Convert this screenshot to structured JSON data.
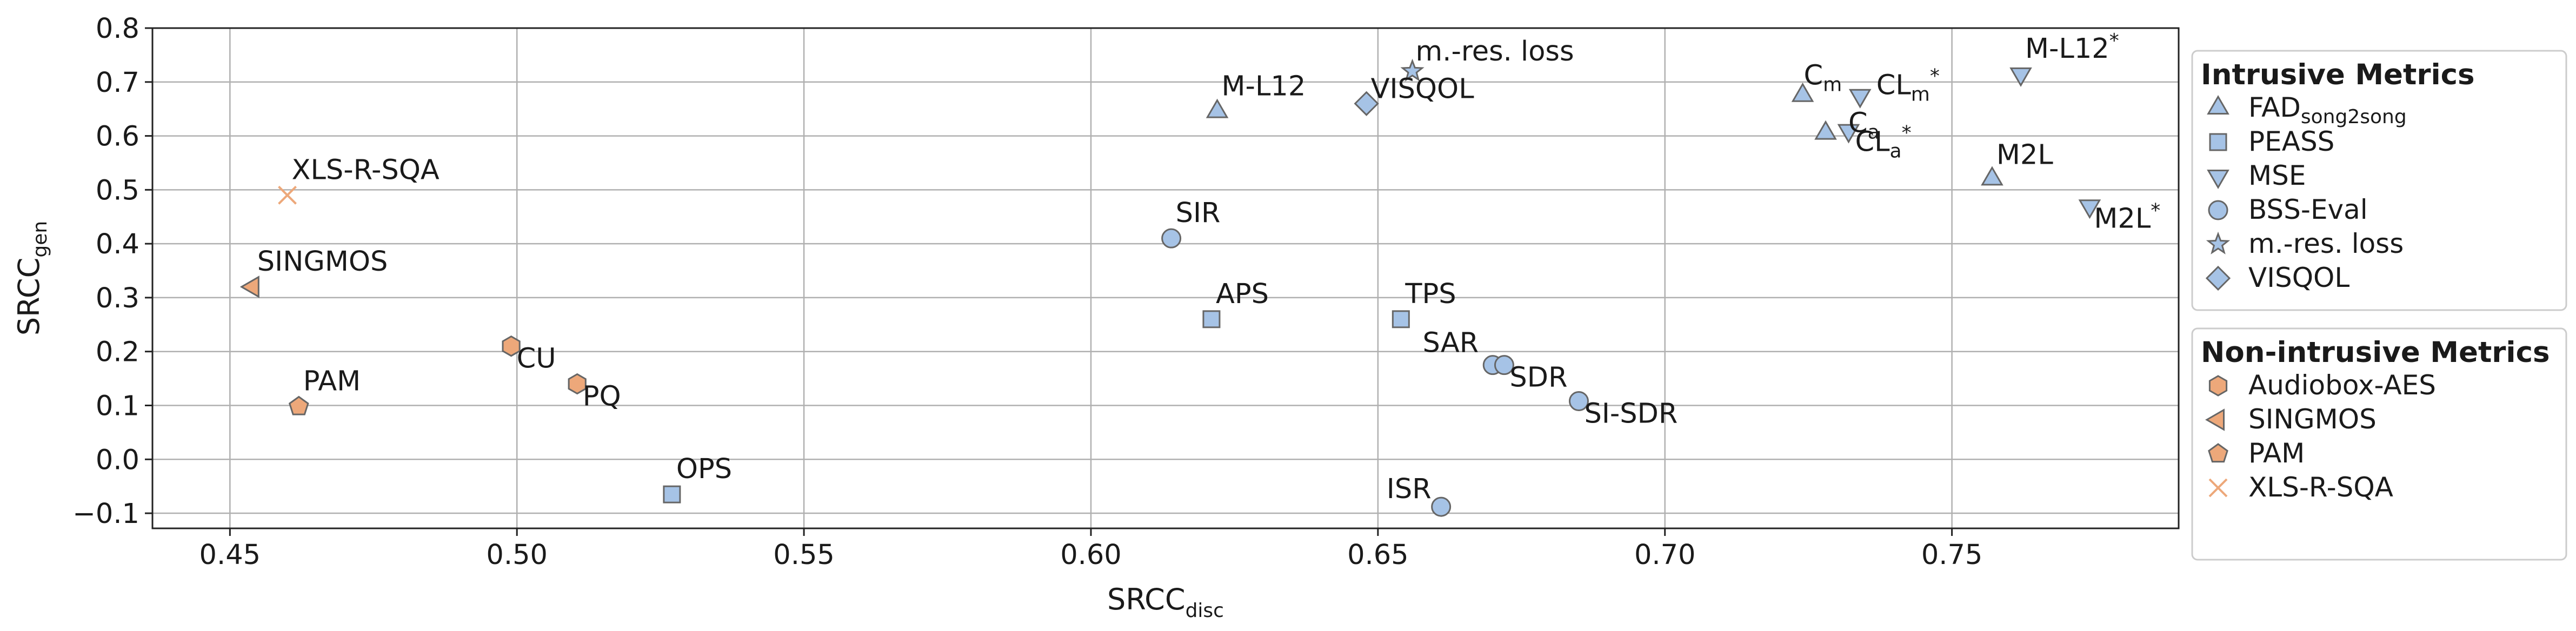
{
  "chart_data": {
    "type": "scatter",
    "xlabel": {
      "base": "SRCC",
      "sub": "disc"
    },
    "ylabel": {
      "base": "SRCC",
      "sub": "gen"
    },
    "xlim": [
      0.4365,
      0.7895
    ],
    "ylim": [
      -0.128,
      0.8
    ],
    "xticks": [
      0.45,
      0.5,
      0.55,
      0.6,
      0.65,
      0.7,
      0.75
    ],
    "xtick_labels": [
      "0.45",
      "0.50",
      "0.55",
      "0.60",
      "0.65",
      "0.70",
      "0.75"
    ],
    "yticks": [
      -0.1,
      0.0,
      0.1,
      0.2,
      0.3,
      0.4,
      0.5,
      0.6,
      0.7,
      0.8
    ],
    "ytick_labels": [
      "−0.1",
      "0.0",
      "0.1",
      "0.2",
      "0.3",
      "0.4",
      "0.5",
      "0.6",
      "0.7",
      "0.8"
    ],
    "grid": true,
    "colors": {
      "intrusive": "#a6c3e6",
      "non_intrusive": "#eda87a"
    },
    "legend": [
      {
        "title": "Intrusive Metrics",
        "placement": "top-right",
        "entries": [
          {
            "marker": "triangle-up",
            "label": "FAD",
            "label_sub": "song2song"
          },
          {
            "marker": "square",
            "label": "PEASS"
          },
          {
            "marker": "triangle-down",
            "label": "MSE"
          },
          {
            "marker": "circle",
            "label": "BSS-Eval"
          },
          {
            "marker": "star",
            "label": "m.-res. loss"
          },
          {
            "marker": "diamond",
            "label": "VISQOL"
          }
        ]
      },
      {
        "title": "Non-intrusive Metrics",
        "placement": "right",
        "entries": [
          {
            "marker": "hexagon",
            "label": "Audiobox-AES"
          },
          {
            "marker": "triangle-left",
            "label": "SINGMOS"
          },
          {
            "marker": "pentagon",
            "label": "PAM"
          },
          {
            "marker": "x",
            "label": "XLS-R-SQA"
          }
        ]
      }
    ],
    "series": [
      {
        "group": "intrusive",
        "marker": "triangle-up",
        "points": [
          {
            "x": 0.622,
            "y": 0.645,
            "label": "M-L12"
          },
          {
            "x": 0.724,
            "y": 0.675,
            "label": "C",
            "label_sub": "m"
          },
          {
            "x": 0.728,
            "y": 0.605,
            "label": "C",
            "label_sub": "a"
          },
          {
            "x": 0.757,
            "y": 0.52,
            "label": "M2L"
          }
        ]
      },
      {
        "group": "intrusive",
        "marker": "square",
        "points": [
          {
            "x": 0.621,
            "y": 0.26,
            "label": "APS"
          },
          {
            "x": 0.654,
            "y": 0.26,
            "label": "TPS"
          },
          {
            "x": 0.527,
            "y": -0.065,
            "label": "OPS"
          }
        ]
      },
      {
        "group": "intrusive",
        "marker": "triangle-down",
        "points": [
          {
            "x": 0.762,
            "y": 0.715,
            "label": "M-L12",
            "label_sup": "*"
          },
          {
            "x": 0.734,
            "y": 0.675,
            "label": "CL",
            "label_sub": "m",
            "label_sup": "*"
          },
          {
            "x": 0.732,
            "y": 0.61,
            "label": "CL",
            "label_sub": "a",
            "label_sup": "*"
          },
          {
            "x": 0.774,
            "y": 0.47,
            "label": "M2L",
            "label_sup": "*"
          }
        ]
      },
      {
        "group": "intrusive",
        "marker": "circle",
        "points": [
          {
            "x": 0.614,
            "y": 0.41,
            "label": "SIR"
          },
          {
            "x": 0.67,
            "y": 0.175,
            "label": "SAR"
          },
          {
            "x": 0.672,
            "y": 0.175,
            "label": "SDR"
          },
          {
            "x": 0.685,
            "y": 0.108,
            "label": "SI-SDR"
          },
          {
            "x": 0.661,
            "y": -0.088,
            "label": "ISR"
          }
        ]
      },
      {
        "group": "intrusive",
        "marker": "star",
        "points": [
          {
            "x": 0.656,
            "y": 0.72,
            "label": "m.-res. loss"
          }
        ]
      },
      {
        "group": "intrusive",
        "marker": "diamond",
        "points": [
          {
            "x": 0.648,
            "y": 0.66,
            "label": "VISQOL"
          }
        ]
      },
      {
        "group": "non_intrusive",
        "marker": "hexagon",
        "points": [
          {
            "x": 0.499,
            "y": 0.21,
            "label": "CU"
          },
          {
            "x": 0.5105,
            "y": 0.14,
            "label": "PQ"
          }
        ]
      },
      {
        "group": "non_intrusive",
        "marker": "triangle-left",
        "points": [
          {
            "x": 0.454,
            "y": 0.32,
            "label": "SINGMOS"
          }
        ]
      },
      {
        "group": "non_intrusive",
        "marker": "pentagon",
        "points": [
          {
            "x": 0.462,
            "y": 0.098,
            "label": "PAM"
          }
        ]
      },
      {
        "group": "non_intrusive",
        "marker": "x",
        "points": [
          {
            "x": 0.46,
            "y": 0.49,
            "label": "XLS-R-SQA"
          }
        ]
      }
    ]
  }
}
